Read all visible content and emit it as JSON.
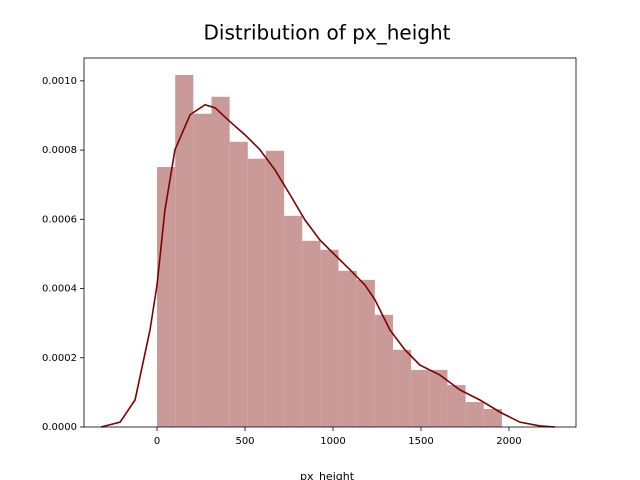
{
  "chart_data": {
    "type": "histogram",
    "title": "Distribution of px_height",
    "xlabel": "px_height",
    "bins": [
      0,
      103.2,
      206.3,
      309.5,
      412.6,
      515.8,
      618.9,
      722.1,
      825.3,
      928.4,
      1031.6,
      1134.7,
      1237.9,
      1341.1,
      1444.2,
      1547.4,
      1650.5,
      1753.7,
      1856.8,
      1960
    ],
    "values": [
      0.000751,
      0.001017,
      0.000905,
      0.000954,
      0.000824,
      0.000775,
      0.000798,
      0.00061,
      0.000538,
      0.000512,
      0.000451,
      0.000425,
      0.000324,
      0.000223,
      0.000165,
      0.000165,
      0.000121,
      7.2e-05,
      5.2e-05
    ],
    "color": "#c99a98",
    "kde": {
      "color": "#800000",
      "x": [
        -318,
        -210,
        -125,
        -40,
        0,
        45,
        102,
        188,
        273,
        330,
        415,
        500,
        585,
        670,
        756,
        841,
        926,
        1011,
        1097,
        1182,
        1239,
        1324,
        1409,
        1494,
        1608,
        1722,
        1835,
        1949,
        2062,
        2176,
        2261
      ],
      "values": [
        0,
        1.4e-05,
        7.8e-05,
        0.00028,
        0.00041,
        0.000627,
        0.000801,
        0.000902,
        0.000931,
        0.000922,
        0.000882,
        0.000844,
        0.000801,
        0.000743,
        0.000671,
        0.000598,
        0.00054,
        0.000497,
        0.000454,
        0.00041,
        0.000367,
        0.00028,
        0.000223,
        0.000179,
        0.00015,
        0.000107,
        7.8e-05,
        4.3e-05,
        1.4e-05,
        3e-06,
        0
      ]
    },
    "xlim": [
      -415,
      2381
    ],
    "ylim": [
      0,
      0.001066
    ],
    "xticks": [
      0,
      500,
      1000,
      1500,
      2000
    ],
    "yticks": [
      {
        "value": 0,
        "label": "0.0000"
      },
      {
        "value": 0.0002,
        "label": "0.0002"
      },
      {
        "value": 0.0004,
        "label": "0.0004"
      },
      {
        "value": 0.0006,
        "label": "0.0006"
      },
      {
        "value": 0.0008,
        "label": "0.0008"
      },
      {
        "value": 0.001,
        "label": "0.0010"
      }
    ]
  }
}
